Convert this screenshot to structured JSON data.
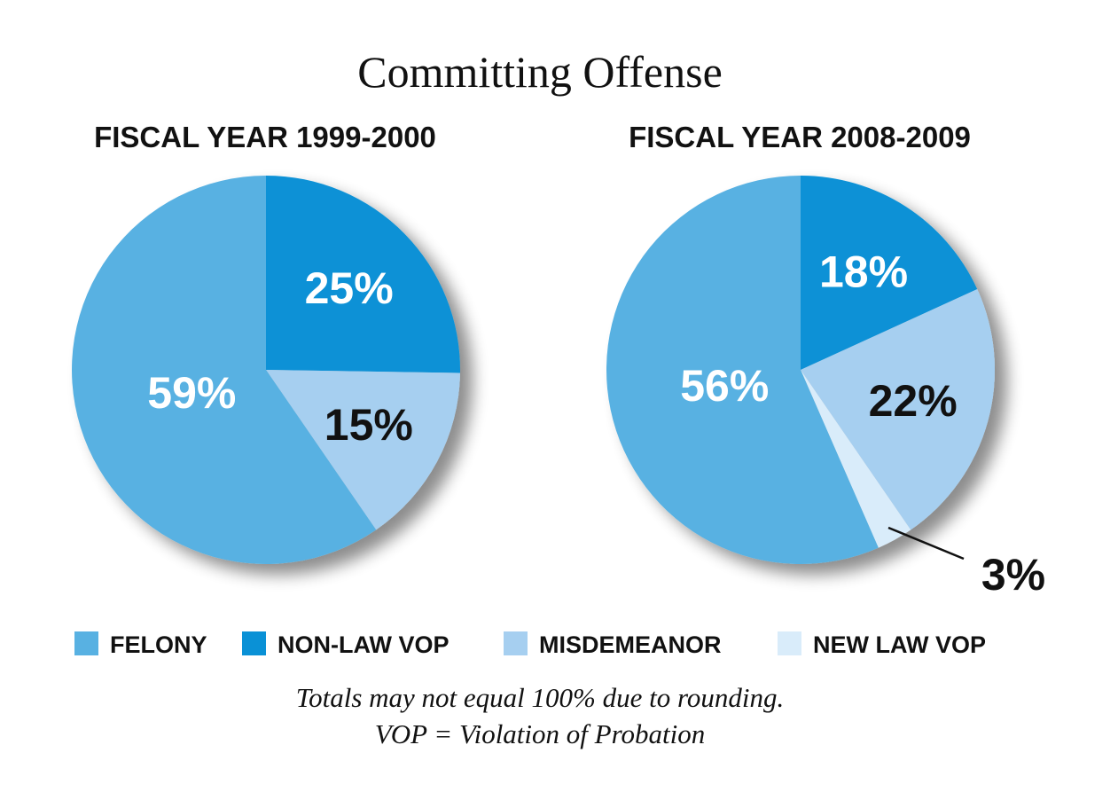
{
  "chart_data": [
    {
      "type": "pie",
      "title": "FISCAL YEAR 1999-2000",
      "slices": [
        {
          "label": "NON-LAW VOP",
          "value": 25,
          "display": "25%",
          "color": "#0a91d6",
          "text_color": "#ffffff"
        },
        {
          "label": "MISDEMEANOR",
          "value": 15,
          "display": "15%",
          "color": "#a6cff0",
          "text_color": "#111111"
        },
        {
          "label": "FELONY",
          "value": 59,
          "display": "59%",
          "color": "#58b1e2",
          "text_color": "#ffffff"
        }
      ]
    },
    {
      "type": "pie",
      "title": "FISCAL YEAR 2008-2009",
      "slices": [
        {
          "label": "NON-LAW VOP",
          "value": 18,
          "display": "18%",
          "color": "#0a91d6",
          "text_color": "#ffffff"
        },
        {
          "label": "MISDEMEANOR",
          "value": 22,
          "display": "22%",
          "color": "#a6cff0",
          "text_color": "#111111"
        },
        {
          "label": "NEW LAW VOP",
          "value": 3,
          "display": "3%",
          "color": "#d9ecfa",
          "text_color": "#111111",
          "callout": true
        },
        {
          "label": "FELONY",
          "value": 56,
          "display": "56%",
          "color": "#58b1e2",
          "text_color": "#ffffff"
        }
      ]
    }
  ],
  "header": {
    "title": "Committing Offense"
  },
  "legend": [
    {
      "label": "FELONY",
      "color": "#58b1e2"
    },
    {
      "label": "NON-LAW VOP",
      "color": "#0a91d6"
    },
    {
      "label": "MISDEMEANOR",
      "color": "#a6cff0"
    },
    {
      "label": "NEW LAW VOP",
      "color": "#d9ecfa"
    }
  ],
  "notes": {
    "line1": "Totals may not equal 100% due to rounding.",
    "line2": "VOP = Violation of Probation"
  }
}
